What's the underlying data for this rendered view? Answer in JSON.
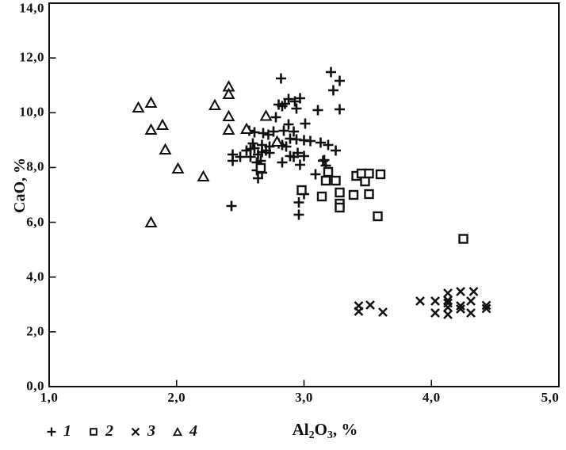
{
  "figure": {
    "background": "#ffffff",
    "line_color": "#111111"
  },
  "chart_data": {
    "type": "scatter",
    "title": "",
    "ylabel": "CaO, %",
    "xlabel_parts": {
      "base1": "Al",
      "sub1": "2",
      "base2": "O",
      "sub2": "3",
      "suffix": ", %"
    },
    "xlim": [
      1.0,
      5.0
    ],
    "ylim": [
      0.0,
      14.0
    ],
    "grid": false,
    "x_ticks": [
      {
        "v": 1,
        "label": "1,0"
      },
      {
        "v": 2,
        "label": "2,0"
      },
      {
        "v": 3,
        "label": "3,0"
      },
      {
        "v": 4,
        "label": "4,0"
      },
      {
        "v": 5,
        "label": "5,0"
      }
    ],
    "y_ticks": [
      {
        "v": 0,
        "label": "0,0"
      },
      {
        "v": 2,
        "label": "2,0"
      },
      {
        "v": 4,
        "label": "4,0"
      },
      {
        "v": 6,
        "label": "6,0"
      },
      {
        "v": 8,
        "label": "8,0"
      },
      {
        "v": 10,
        "label": "10,0"
      },
      {
        "v": 12,
        "label": "12,0"
      },
      {
        "v": 14,
        "label": "14,0"
      }
    ],
    "legend": {
      "position": "bottom-left",
      "items": [
        {
          "label": "1",
          "marker": "plus"
        },
        {
          "label": "2",
          "marker": "square"
        },
        {
          "label": "3",
          "marker": "x"
        },
        {
          "label": "4",
          "marker": "triangle"
        }
      ]
    },
    "series": [
      {
        "name": "1",
        "marker": "plus",
        "points": [
          [
            2.82,
            11.25
          ],
          [
            3.21,
            11.48
          ],
          [
            3.28,
            11.17
          ],
          [
            3.23,
            10.82
          ],
          [
            2.8,
            10.3
          ],
          [
            2.83,
            10.24
          ],
          [
            2.85,
            10.33
          ],
          [
            2.88,
            10.5
          ],
          [
            2.93,
            10.41
          ],
          [
            2.97,
            10.53
          ],
          [
            2.94,
            10.15
          ],
          [
            3.11,
            10.09
          ],
          [
            3.28,
            10.12
          ],
          [
            2.78,
            9.83
          ],
          [
            2.88,
            9.57
          ],
          [
            3.01,
            9.6
          ],
          [
            2.84,
            9.34
          ],
          [
            2.92,
            9.31
          ],
          [
            2.57,
            9.34
          ],
          [
            2.61,
            9.28
          ],
          [
            2.68,
            9.25
          ],
          [
            2.72,
            9.2
          ],
          [
            2.76,
            9.31
          ],
          [
            2.89,
            9.05
          ],
          [
            2.94,
            9.02
          ],
          [
            3.0,
            9.0
          ],
          [
            3.05,
            8.97
          ],
          [
            2.6,
            8.88
          ],
          [
            2.67,
            8.82
          ],
          [
            2.73,
            8.76
          ],
          [
            2.8,
            8.88
          ],
          [
            2.83,
            8.82
          ],
          [
            2.86,
            8.76
          ],
          [
            3.13,
            8.91
          ],
          [
            3.19,
            8.82
          ],
          [
            3.25,
            8.62
          ],
          [
            2.55,
            8.62
          ],
          [
            2.58,
            8.68
          ],
          [
            2.61,
            8.71
          ],
          [
            2.67,
            8.56
          ],
          [
            2.7,
            8.62
          ],
          [
            2.73,
            8.53
          ],
          [
            2.95,
            8.53
          ],
          [
            2.44,
            8.48
          ],
          [
            2.44,
            8.24
          ],
          [
            2.5,
            8.39
          ],
          [
            2.58,
            8.39
          ],
          [
            2.64,
            8.48
          ],
          [
            2.63,
            8.19
          ],
          [
            2.66,
            8.24
          ],
          [
            2.89,
            8.42
          ],
          [
            3.0,
            8.42
          ],
          [
            3.16,
            8.27
          ],
          [
            2.83,
            8.19
          ],
          [
            2.92,
            8.39
          ],
          [
            2.97,
            8.1
          ],
          [
            3.15,
            8.24
          ],
          [
            3.17,
            8.07
          ],
          [
            2.63,
            7.9
          ],
          [
            2.67,
            7.81
          ],
          [
            2.64,
            7.61
          ],
          [
            3.09,
            7.75
          ],
          [
            3.0,
            7.03
          ],
          [
            2.96,
            6.72
          ],
          [
            2.96,
            6.28
          ],
          [
            2.43,
            6.59
          ]
        ]
      },
      {
        "name": "2",
        "marker": "square",
        "points": [
          [
            2.66,
            7.98
          ],
          [
            2.98,
            7.17
          ],
          [
            3.14,
            6.94
          ],
          [
            3.17,
            7.52
          ],
          [
            3.19,
            7.84
          ],
          [
            3.25,
            7.52
          ],
          [
            3.28,
            7.09
          ],
          [
            3.28,
            6.68
          ],
          [
            3.28,
            6.54
          ],
          [
            3.39,
            7.0
          ],
          [
            3.41,
            7.7
          ],
          [
            3.45,
            7.78
          ],
          [
            3.48,
            7.49
          ],
          [
            3.51,
            7.78
          ],
          [
            3.51,
            7.03
          ],
          [
            3.6,
            7.75
          ],
          [
            3.58,
            6.22
          ],
          [
            4.25,
            5.4
          ]
        ]
      },
      {
        "name": "3",
        "marker": "x",
        "points": [
          [
            3.43,
            2.95
          ],
          [
            3.43,
            2.75
          ],
          [
            3.52,
            2.98
          ],
          [
            3.62,
            2.72
          ],
          [
            3.91,
            3.12
          ],
          [
            4.03,
            3.12
          ],
          [
            4.03,
            2.69
          ],
          [
            4.13,
            3.41
          ],
          [
            4.13,
            3.15
          ],
          [
            4.13,
            3.05
          ],
          [
            4.13,
            2.89
          ],
          [
            4.13,
            2.63
          ],
          [
            4.23,
            3.47
          ],
          [
            4.23,
            2.95
          ],
          [
            4.23,
            2.84
          ],
          [
            4.33,
            3.47
          ],
          [
            4.31,
            3.12
          ],
          [
            4.31,
            2.69
          ],
          [
            4.43,
            2.97
          ],
          [
            4.43,
            2.85
          ]
        ]
      },
      {
        "name": "4",
        "marker": "triangle",
        "points": [
          [
            1.7,
            10.18
          ],
          [
            1.8,
            10.35
          ],
          [
            1.8,
            9.37
          ],
          [
            1.89,
            9.54
          ],
          [
            1.91,
            8.65
          ],
          [
            2.01,
            7.95
          ],
          [
            2.21,
            7.67
          ],
          [
            1.8,
            5.99
          ],
          [
            2.3,
            10.27
          ],
          [
            2.41,
            10.95
          ],
          [
            2.41,
            10.67
          ],
          [
            2.41,
            9.86
          ],
          [
            2.41,
            9.37
          ],
          [
            2.55,
            9.4
          ],
          [
            2.7,
            9.88
          ],
          [
            2.79,
            8.94
          ]
        ]
      }
    ]
  }
}
